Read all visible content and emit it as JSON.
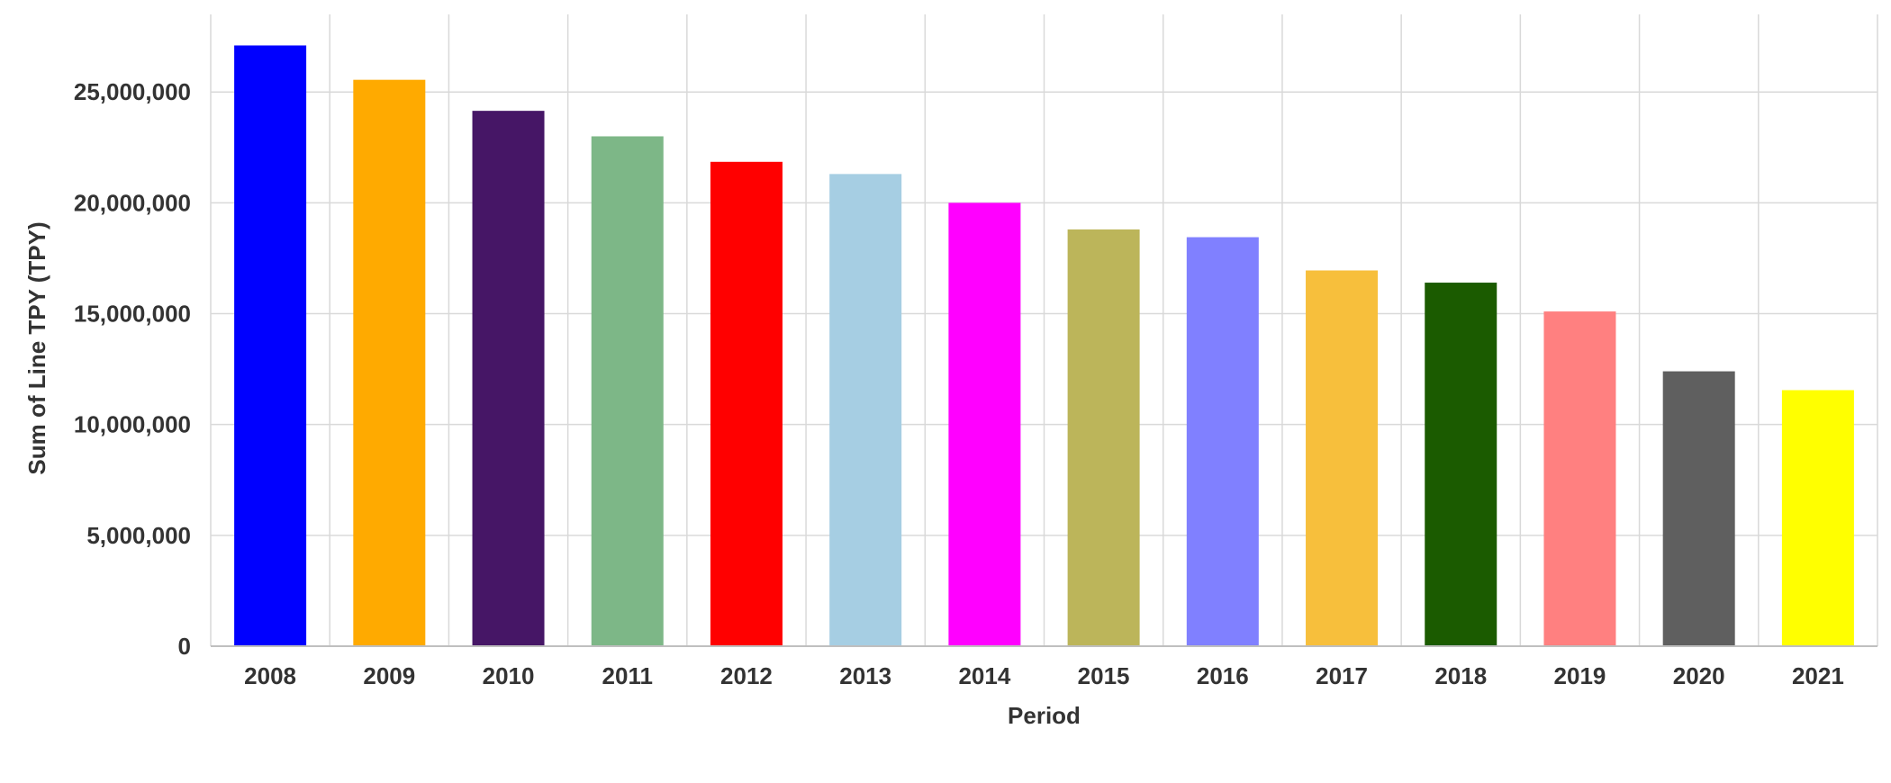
{
  "chart_data": {
    "type": "bar",
    "title": "",
    "xlabel": "Period",
    "ylabel": "Sum of Line TPY (TPY)",
    "categories": [
      "2008",
      "2009",
      "2010",
      "2011",
      "2012",
      "2013",
      "2014",
      "2015",
      "2016",
      "2017",
      "2018",
      "2019",
      "2020",
      "2021"
    ],
    "values": [
      27100000,
      25550000,
      24150000,
      23000000,
      21850000,
      21300000,
      20000000,
      18800000,
      18450000,
      16950000,
      16400000,
      15100000,
      12400000,
      11550000
    ],
    "colors": [
      "#0000ff",
      "#ffaa00",
      "#461666",
      "#7db787",
      "#ff0000",
      "#a6cee3",
      "#ff00ff",
      "#bcb55a",
      "#8080ff",
      "#f7bf3c",
      "#1b5b00",
      "#ff8080",
      "#5f5f5f",
      "#ffff00"
    ],
    "yticks": [
      0,
      5000000,
      10000000,
      15000000,
      20000000,
      25000000
    ],
    "ytick_labels": [
      "0",
      "5,000,000",
      "10,000,000",
      "15,000,000",
      "20,000,000",
      "25,000,000"
    ],
    "ylim": [
      0,
      28500000
    ],
    "grid": true,
    "legend": "none"
  }
}
